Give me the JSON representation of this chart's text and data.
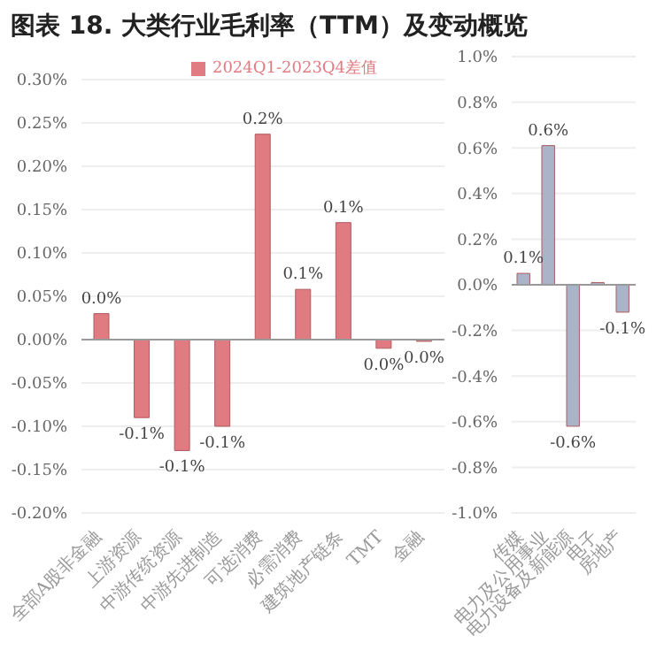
{
  "chart_data": [
    {
      "type": "bar",
      "title": "图表 18. 大类行业毛利率（TTM）及变动概览",
      "categories": [
        "全部A股非金融",
        "上游资源",
        "中游传统资源",
        "中游先进制造",
        "可选消费",
        "必需消费",
        "建筑地产链条",
        "TMT",
        "金融"
      ],
      "series": [
        {
          "name": "2024Q1-2023Q4差值",
          "color": "#e07b82",
          "values": [
            0.03,
            -0.09,
            -0.128,
            -0.1,
            0.237,
            0.058,
            0.135,
            -0.01,
            -0.002
          ],
          "value_labels": [
            "0.0%",
            "-0.1%",
            "-0.1%",
            "-0.1%",
            "0.2%",
            "0.1%",
            "0.1%",
            "0.0%",
            "0.0%"
          ]
        }
      ],
      "ylim": [
        -0.2,
        0.3
      ],
      "yticks": [
        {
          "value": -0.2,
          "label": "-0.20%"
        },
        {
          "value": -0.15,
          "label": "-0.15%"
        },
        {
          "value": -0.1,
          "label": "-0.10%"
        },
        {
          "value": -0.05,
          "label": "-0.05%"
        },
        {
          "value": 0,
          "label": "0.00%"
        },
        {
          "value": 0.05,
          "label": "0.05%"
        },
        {
          "value": 0.1,
          "label": "0.10%"
        },
        {
          "value": 0.15,
          "label": "0.15%"
        },
        {
          "value": 0.2,
          "label": "0.20%"
        },
        {
          "value": 0.25,
          "label": "0.25%"
        },
        {
          "value": 0.3,
          "label": "0.30%"
        }
      ],
      "grid": "y",
      "legend": "top"
    },
    {
      "type": "bar",
      "categories": [
        "传媒",
        "电力及公用事业",
        "电力设备及新能源",
        "电子",
        "房地产"
      ],
      "series": [
        {
          "color": "#a9b4c8",
          "values": [
            0.05,
            0.61,
            -0.62,
            0.01,
            -0.12
          ],
          "value_labels": [
            "0.1%",
            "0.6%",
            "-0.6%",
            null,
            "-0.1%"
          ]
        }
      ],
      "ylim": [
        -1,
        1
      ],
      "yticks": [
        {
          "value": -1,
          "label": "-1.0%"
        },
        {
          "value": -0.8,
          "label": "-0.8%"
        },
        {
          "value": -0.6,
          "label": "-0.6%"
        },
        {
          "value": -0.4,
          "label": "-0.4%"
        },
        {
          "value": -0.2,
          "label": "-0.2%"
        },
        {
          "value": 0,
          "label": "0.0%"
        },
        {
          "value": 0.2,
          "label": "0.2%"
        },
        {
          "value": 0.4,
          "label": "0.4%"
        },
        {
          "value": 0.6,
          "label": "0.6%"
        },
        {
          "value": 0.8,
          "label": "0.8%"
        },
        {
          "value": 1,
          "label": "1.0%"
        }
      ],
      "grid": "y",
      "legend": false
    }
  ]
}
